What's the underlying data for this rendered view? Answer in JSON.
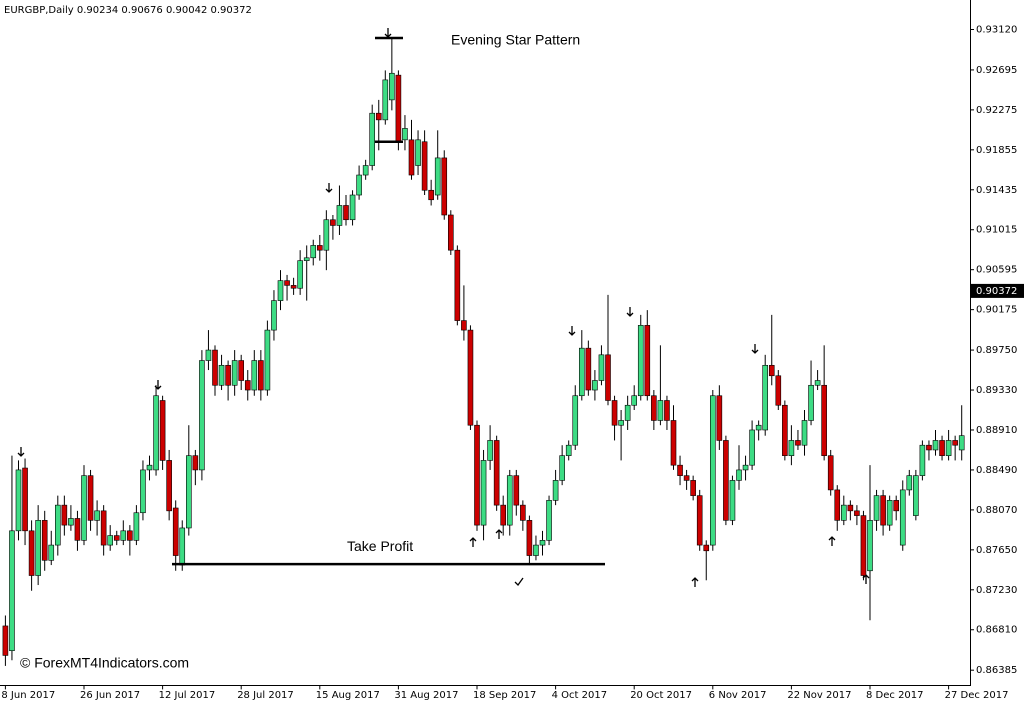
{
  "chart_data": {
    "type": "candlestick",
    "title": "EURGBP,Daily  0.90234 0.90676 0.90042 0.90372",
    "watermark": "© ForexMT4Indicators.com",
    "up_color": "#3ddc84",
    "down_color": "#cc0000",
    "grid": false,
    "ylim": [
      0.86225,
      0.9343
    ],
    "yticks": [
      {
        "value": 0.9312,
        "label": "0.93120"
      },
      0.92695,
      0.92275,
      0.91855,
      0.91435,
      0.91015,
      0.90595,
      0.90175,
      {
        "value": 0.8975,
        "label": "0.89750"
      },
      {
        "value": 0.8933,
        "label": "0.89330"
      },
      {
        "value": 0.8891,
        "label": "0.88910"
      },
      {
        "value": 0.8849,
        "label": "0.88490"
      },
      {
        "value": 0.8807,
        "label": "0.88070"
      },
      {
        "value": 0.8765,
        "label": "0.87650"
      },
      {
        "value": 0.8723,
        "label": "0.87230"
      },
      {
        "value": 0.8681,
        "label": "0.86810"
      },
      0.86385
    ],
    "last_price": 0.90372,
    "evening_star": {
      "label": "Evening Star Pattern",
      "levels": [
        0.9303,
        0.9194
      ]
    },
    "take_profit": {
      "label": "Take Profit",
      "level": 0.875
    },
    "categories": [
      "8 Jun 2017",
      null,
      null,
      null,
      null,
      null,
      null,
      null,
      null,
      null,
      null,
      null,
      "26 Jun 2017",
      null,
      null,
      null,
      null,
      null,
      null,
      null,
      null,
      null,
      null,
      null,
      "12 Jul 2017",
      null,
      null,
      null,
      null,
      null,
      null,
      null,
      null,
      null,
      null,
      null,
      "28 Jul 2017",
      null,
      null,
      null,
      null,
      null,
      null,
      null,
      null,
      null,
      null,
      null,
      "15 Aug 2017",
      null,
      null,
      null,
      null,
      null,
      null,
      null,
      null,
      null,
      null,
      null,
      "31 Aug 2017",
      null,
      null,
      null,
      null,
      null,
      null,
      null,
      null,
      null,
      null,
      null,
      "18 Sep 2017",
      null,
      null,
      null,
      null,
      null,
      null,
      null,
      null,
      null,
      null,
      null,
      "4 Oct 2017",
      null,
      null,
      null,
      null,
      null,
      null,
      null,
      null,
      null,
      null,
      null,
      "20 Oct 2017",
      null,
      null,
      null,
      null,
      null,
      null,
      null,
      null,
      null,
      null,
      null,
      "6 Nov 2017",
      null,
      null,
      null,
      null,
      null,
      null,
      null,
      null,
      null,
      null,
      null,
      "22 Nov 2017",
      null,
      null,
      null,
      null,
      null,
      null,
      null,
      null,
      null,
      null,
      null,
      "8 Dec 2017",
      null,
      null,
      null,
      null,
      null,
      null,
      null,
      null,
      null,
      null,
      null,
      "27 Dec 2017",
      null,
      null
    ],
    "open": [
      0.8685,
      0.8659,
      0.8785,
      0.8851,
      0.8785,
      0.8738,
      0.8796,
      0.8754,
      0.877,
      0.8812,
      0.8791,
      0.8798,
      0.8775,
      0.8843,
      0.8796,
      0.8806,
      0.877,
      0.878,
      0.8775,
      0.8785,
      0.8775,
      0.8804,
      0.8849,
      0.8849,
      0.8922,
      0.8859,
      0.8809,
      0.8749,
      0.8788,
      0.8864,
      0.8849,
      0.8964,
      0.8975,
      0.8938,
      0.8959,
      0.8938,
      0.8964,
      0.8943,
      0.8933,
      0.8964,
      0.8933,
      0.8996,
      0.9027,
      0.9048,
      0.9043,
      0.904,
      0.9069,
      0.9072,
      0.9085,
      0.908,
      0.9112,
      0.9106,
      0.9127,
      0.9112,
      0.9138,
      0.9159,
      0.9169,
      0.9224,
      0.9217,
      0.9238,
      0.9264,
      0.9196,
      0.9196,
      0.9169,
      0.9194,
      0.9143,
      0.9138,
      0.9177,
      0.9117,
      0.908,
      0.9006,
      0.8996,
      0.8896,
      0.8791,
      0.8859,
      0.888,
      0.8812,
      0.8791,
      0.8843,
      0.8812,
      0.8796,
      0.8759,
      0.877,
      0.8775,
      0.8817,
      0.8838,
      0.8864,
      0.8875,
      0.8927,
      0.8977,
      0.8933,
      0.8943,
      0.897,
      0.8922,
      0.8896,
      0.8901,
      0.8917,
      0.8927,
      0.9001,
      0.8927,
      0.8901,
      0.8922,
      0.8901,
      0.8854,
      0.8843,
      0.8838,
      0.8822,
      0.877,
      0.877,
      0.8927,
      0.888,
      0.8796,
      0.8838,
      0.8849,
      0.8854,
      0.8891,
      0.8891,
      0.8959,
      0.8948,
      0.8917,
      0.8864,
      0.888,
      0.8875,
      0.8901,
      0.8938,
      0.8938,
      0.8864,
      0.8828,
      0.8796,
      0.8812,
      0.8806,
      0.8801,
      0.8743,
      0.8796,
      0.8822,
      0.8791,
      0.8817,
      0.877,
      0.8828,
      0.8801,
      0.8843,
      0.8875,
      0.887,
      0.888,
      0.8864,
      0.888,
      0.887
    ],
    "high": [
      0.8696,
      0.8864,
      0.8859,
      0.8861,
      0.8796,
      0.8812,
      0.8806,
      0.8785,
      0.8822,
      0.8822,
      0.8812,
      0.8806,
      0.8854,
      0.8849,
      0.8817,
      0.8812,
      0.8791,
      0.8785,
      0.8796,
      0.8791,
      0.8812,
      0.8859,
      0.8864,
      0.8938,
      0.8927,
      0.887,
      0.8817,
      0.8796,
      0.8896,
      0.887,
      0.8975,
      0.8996,
      0.898,
      0.897,
      0.8964,
      0.8975,
      0.897,
      0.8954,
      0.8975,
      0.8975,
      0.9006,
      0.9038,
      0.9059,
      0.9054,
      0.9051,
      0.908,
      0.9085,
      0.9091,
      0.9096,
      0.9122,
      0.9117,
      0.9148,
      0.9138,
      0.9143,
      0.9169,
      0.9175,
      0.9233,
      0.9238,
      0.9269,
      0.9303,
      0.9269,
      0.9222,
      0.9217,
      0.9206,
      0.9206,
      0.9154,
      0.9206,
      0.9185,
      0.9122,
      0.9085,
      0.9043,
      0.9001,
      0.8901,
      0.887,
      0.8896,
      0.8885,
      0.8822,
      0.8849,
      0.8849,
      0.8817,
      0.8801,
      0.878,
      0.8785,
      0.8822,
      0.8849,
      0.8875,
      0.888,
      0.8938,
      0.8996,
      0.8985,
      0.8954,
      0.898,
      0.9033,
      0.8927,
      0.8912,
      0.8927,
      0.8938,
      0.9012,
      0.9017,
      0.8933,
      0.898,
      0.8927,
      0.8917,
      0.8864,
      0.8849,
      0.8843,
      0.8828,
      0.8775,
      0.8933,
      0.8938,
      0.8885,
      0.8843,
      0.8875,
      0.8864,
      0.8901,
      0.8901,
      0.897,
      0.9012,
      0.8954,
      0.8922,
      0.8896,
      0.8891,
      0.8912,
      0.8964,
      0.8954,
      0.898,
      0.887,
      0.8833,
      0.8822,
      0.8817,
      0.8812,
      0.8806,
      0.8854,
      0.8828,
      0.8828,
      0.8822,
      0.8822,
      0.8838,
      0.8849,
      0.8849,
      0.888,
      0.888,
      0.8891,
      0.8885,
      0.8891,
      0.8885,
      0.8917
    ],
    "low": [
      0.8643,
      0.8649,
      0.8775,
      0.877,
      0.8722,
      0.8728,
      0.8743,
      0.8749,
      0.8759,
      0.878,
      0.8785,
      0.8764,
      0.877,
      0.8785,
      0.878,
      0.8759,
      0.8764,
      0.877,
      0.877,
      0.8759,
      0.877,
      0.8796,
      0.8838,
      0.8843,
      0.8849,
      0.8796,
      0.8743,
      0.8743,
      0.878,
      0.8833,
      0.8838,
      0.8954,
      0.8927,
      0.8933,
      0.8922,
      0.8927,
      0.8933,
      0.8922,
      0.8927,
      0.8922,
      0.8927,
      0.8985,
      0.9017,
      0.9027,
      0.9033,
      0.9033,
      0.9027,
      0.9064,
      0.9069,
      0.9059,
      0.9091,
      0.9096,
      0.9106,
      0.9106,
      0.9133,
      0.9154,
      0.9164,
      0.9185,
      0.9212,
      0.9227,
      0.9185,
      0.9185,
      0.9154,
      0.9159,
      0.9138,
      0.9127,
      0.9133,
      0.9112,
      0.9075,
      0.9001,
      0.8985,
      0.8891,
      0.8785,
      0.8775,
      0.8849,
      0.8806,
      0.878,
      0.878,
      0.8801,
      0.8785,
      0.8749,
      0.8754,
      0.8759,
      0.877,
      0.8812,
      0.8833,
      0.8859,
      0.887,
      0.8922,
      0.8927,
      0.8922,
      0.8938,
      0.8917,
      0.888,
      0.8859,
      0.8891,
      0.8912,
      0.8922,
      0.8922,
      0.8891,
      0.8896,
      0.8891,
      0.8849,
      0.8833,
      0.8828,
      0.8817,
      0.8764,
      0.8733,
      0.8764,
      0.887,
      0.8791,
      0.8791,
      0.8828,
      0.8838,
      0.8849,
      0.888,
      0.8885,
      0.8938,
      0.8912,
      0.8859,
      0.8854,
      0.887,
      0.8864,
      0.8896,
      0.8933,
      0.8859,
      0.8822,
      0.8785,
      0.8791,
      0.8796,
      0.8791,
      0.8733,
      0.8691,
      0.8785,
      0.878,
      0.8785,
      0.8796,
      0.8764,
      0.8822,
      0.8796,
      0.8838,
      0.8859,
      0.8864,
      0.8859,
      0.8859,
      0.8859,
      0.8859
    ],
    "close": [
      0.8654,
      0.8785,
      0.8849,
      0.8785,
      0.8738,
      0.8796,
      0.8754,
      0.877,
      0.8812,
      0.8791,
      0.8798,
      0.8775,
      0.8843,
      0.8796,
      0.8806,
      0.877,
      0.878,
      0.8775,
      0.8785,
      0.8775,
      0.8804,
      0.8849,
      0.8854,
      0.8927,
      0.8859,
      0.8806,
      0.8759,
      0.8788,
      0.8864,
      0.8849,
      0.8964,
      0.8975,
      0.8938,
      0.8959,
      0.8938,
      0.8964,
      0.8943,
      0.8933,
      0.8964,
      0.8933,
      0.8996,
      0.9027,
      0.9048,
      0.9043,
      0.904,
      0.9069,
      0.9072,
      0.9085,
      0.908,
      0.9112,
      0.9106,
      0.9127,
      0.9112,
      0.9138,
      0.9159,
      0.9169,
      0.9224,
      0.9217,
      0.9259,
      0.9266,
      0.9194,
      0.9208,
      0.9159,
      0.9196,
      0.9143,
      0.9133,
      0.9177,
      0.9117,
      0.908,
      0.9006,
      0.8996,
      0.8896,
      0.8791,
      0.8859,
      0.888,
      0.8812,
      0.8791,
      0.8843,
      0.8812,
      0.8796,
      0.8759,
      0.877,
      0.8775,
      0.8817,
      0.8838,
      0.8864,
      0.8875,
      0.8927,
      0.8977,
      0.8933,
      0.8943,
      0.897,
      0.8922,
      0.8896,
      0.8901,
      0.8917,
      0.8927,
      0.9001,
      0.8927,
      0.8901,
      0.8922,
      0.8901,
      0.8854,
      0.8843,
      0.8838,
      0.8822,
      0.877,
      0.8764,
      0.8927,
      0.888,
      0.8796,
      0.8838,
      0.8849,
      0.8854,
      0.8891,
      0.8896,
      0.8959,
      0.8948,
      0.8917,
      0.8864,
      0.888,
      0.8875,
      0.8901,
      0.8938,
      0.8943,
      0.8864,
      0.8828,
      0.8796,
      0.8812,
      0.8806,
      0.8801,
      0.8738,
      0.8796,
      0.8822,
      0.8791,
      0.8817,
      0.8806,
      0.8828,
      0.8843,
      0.8843,
      0.8875,
      0.887,
      0.888,
      0.8864,
      0.888,
      0.8875,
      0.8885
    ]
  }
}
